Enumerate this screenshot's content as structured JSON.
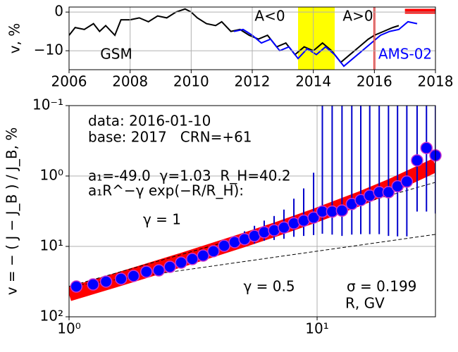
{
  "chart_data": [
    {
      "type": "line",
      "ylabel": "v, %",
      "xlim": [
        2006,
        2018
      ],
      "xticks": [
        2006,
        2008,
        2010,
        2012,
        2014,
        2016,
        2018
      ],
      "ylim": [
        -14.9,
        1.3
      ],
      "yticks": [
        {
          "value": -10,
          "label": "−10"
        },
        0
      ],
      "grid": true,
      "series": [
        {
          "name": "GSM",
          "color": "#000000",
          "x": [
            2006.0,
            2006.2,
            2006.5,
            2006.8,
            2007.0,
            2007.2,
            2007.5,
            2007.7,
            2008.0,
            2008.3,
            2008.6,
            2008.9,
            2009.2,
            2009.5,
            2009.8,
            2010.0,
            2010.2,
            2010.5,
            2010.8,
            2011.0,
            2011.3,
            2011.6,
            2011.9,
            2012.2,
            2012.5,
            2012.8,
            2013.1,
            2013.4,
            2013.7,
            2014.0,
            2014.3,
            2014.6,
            2014.9,
            2015.2,
            2015.5,
            2015.8,
            2016.0,
            2016.3,
            2016.6,
            2016.8
          ],
          "values": [
            -6,
            -4,
            -4.5,
            -3,
            -5,
            -3.5,
            -6,
            -2,
            -2,
            -1.5,
            -2.5,
            -1,
            -1.5,
            0,
            0.8,
            0,
            -1.5,
            -3,
            -3.5,
            -2.5,
            -5,
            -4.5,
            -6,
            -7,
            -6,
            -9,
            -8,
            -11,
            -9,
            -10,
            -8,
            -10,
            -13,
            -11,
            -9,
            -7,
            -6,
            -5,
            -4,
            -3.5
          ]
        },
        {
          "name": "AMS-02",
          "color": "#0000ff",
          "x": [
            2011.4,
            2011.7,
            2012.0,
            2012.3,
            2012.6,
            2012.9,
            2013.2,
            2013.5,
            2013.8,
            2014.1,
            2014.4,
            2014.7,
            2015.0,
            2015.3,
            2015.6,
            2015.9,
            2016.2,
            2016.5,
            2016.8,
            2017.1,
            2017.4
          ],
          "values": [
            -5,
            -4.5,
            -6,
            -8,
            -7,
            -10,
            -9,
            -12,
            -9.5,
            -11,
            -9,
            -11,
            -14,
            -12,
            -10,
            -8,
            -6,
            -5,
            -4.5,
            -2.5,
            -3
          ]
        }
      ],
      "band": {
        "x": [
          2013.5,
          2014.7
        ],
        "color": "#ffff00"
      },
      "vline": {
        "x": 2016.0,
        "color": "#ff0000"
      },
      "segment": {
        "x": [
          2017.0,
          2018
        ],
        "y": 0.2,
        "color": "#ff0000"
      },
      "annotations": [
        {
          "text": "A<0"
        },
        {
          "text": "A>0"
        }
      ]
    },
    {
      "type": "scatter",
      "xlabel": "R, GV",
      "ylabel": "v = − ( J − J_B ) / J_B, %",
      "xlog": true,
      "ylog": true,
      "y_inverted": true,
      "xlim": [
        1,
        30
      ],
      "xticks": [
        {
          "value": 1,
          "label": "10⁰"
        },
        {
          "value": 10,
          "label": "10¹"
        }
      ],
      "ylim": [
        0.1,
        100
      ],
      "yticks": [
        {
          "value": 0.1,
          "label": "10⁻¹"
        },
        {
          "value": 1,
          "label": "10⁰"
        },
        {
          "value": 10,
          "label": "10¹"
        },
        {
          "value": 100,
          "label": "10²"
        }
      ],
      "grid": true,
      "marker_color": "#0000ff",
      "edge_color": "#cc33cc",
      "error_color": "#0000cc",
      "x": [
        1.07,
        1.25,
        1.41,
        1.62,
        1.82,
        2.05,
        2.3,
        2.55,
        2.83,
        3.14,
        3.47,
        3.82,
        4.22,
        4.65,
        5.1,
        5.59,
        6.12,
        6.71,
        7.35,
        8.06,
        8.83,
        9.68,
        10.5,
        11.5,
        12.6,
        13.8,
        15.0,
        16.3,
        17.8,
        19.4,
        21.1,
        23.0,
        25.3,
        27.6,
        30.0
      ],
      "values": [
        37.2,
        34.7,
        31.6,
        28.8,
        26.3,
        22.9,
        21.9,
        19.5,
        17.0,
        15.1,
        13.5,
        11.7,
        9.8,
        8.7,
        7.9,
        7.1,
        6.3,
        5.9,
        5.4,
        4.7,
        4.3,
        3.9,
        3.2,
        3.2,
        3.1,
        2.5,
        2.2,
        1.9,
        1.7,
        1.7,
        1.4,
        1.2,
        0.6,
        0.4,
        0.51
      ],
      "errors": [
        0.5,
        0.5,
        0.6,
        0.6,
        0.6,
        0.7,
        0.7,
        0.8,
        0.9,
        1.0,
        1.1,
        1.2,
        1.4,
        1.6,
        1.8,
        2.0,
        2.0,
        2.2,
        2.4,
        2.6,
        2.8,
        3.0,
        3.4,
        3.6,
        4.0,
        4.3,
        4.5,
        4.8,
        5.0,
        5.4,
        5.8,
        6.0,
        2.6,
        2.8,
        2.9
      ],
      "fit": {
        "color": "#ff0000",
        "x": [
          1,
          1.5,
          2,
          3,
          4,
          5,
          7,
          10,
          15,
          20,
          30
        ],
        "values": [
          47.8,
          31.1,
          22.8,
          14.7,
          10.6,
          8.25,
          5.55,
          3.56,
          2.07,
          1.36,
          0.7
        ]
      },
      "lines": [
        {
          "label": "γ = 1",
          "x": [
            1,
            30
          ],
          "values": [
            37,
            1.23
          ]
        },
        {
          "label": "γ = 0.5",
          "x": [
            1,
            30
          ],
          "values": [
            37,
            6.75
          ]
        }
      ],
      "annotations": [
        {
          "text": "data: 2016-01-10"
        },
        {
          "text": "base: 2017   CRN=+61"
        },
        {
          "text": "a₁=-49.0  γ=1.03  R_H=40.2"
        },
        {
          "text": "a₁R^−γ exp(−R/R_H):"
        },
        {
          "text": "σ = 0.199"
        }
      ]
    }
  ]
}
